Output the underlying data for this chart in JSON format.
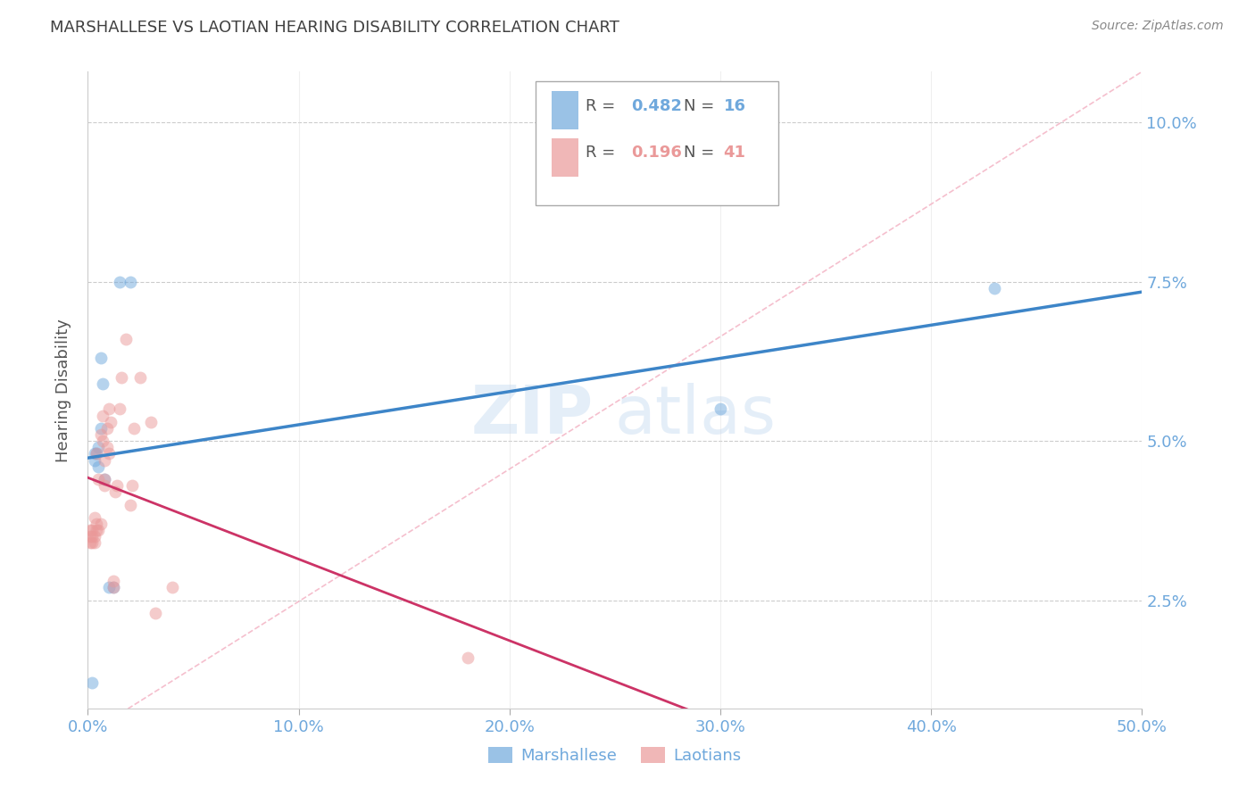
{
  "title": "MARSHALLESE VS LAOTIAN HEARING DISABILITY CORRELATION CHART",
  "source": "Source: ZipAtlas.com",
  "ylabel": "Hearing Disability",
  "xlabel_ticks": [
    "0.0%",
    "10.0%",
    "20.0%",
    "30.0%",
    "40.0%",
    "50.0%"
  ],
  "xlabel_values": [
    0.0,
    0.1,
    0.2,
    0.3,
    0.4,
    0.5
  ],
  "ylabel_ticks": [
    "2.5%",
    "5.0%",
    "7.5%",
    "10.0%"
  ],
  "ylabel_values": [
    0.025,
    0.05,
    0.075,
    0.1
  ],
  "xlim": [
    0.0,
    0.5
  ],
  "ylim": [
    0.008,
    0.108
  ],
  "marshallese_color": "#6fa8dc",
  "laotian_color": "#ea9999",
  "marshallese_R": "0.482",
  "marshallese_N": "16",
  "laotian_R": "0.196",
  "laotian_N": "41",
  "watermark_zip": "ZIP",
  "watermark_atlas": "atlas",
  "marshallese_x": [
    0.002,
    0.003,
    0.003,
    0.004,
    0.005,
    0.005,
    0.006,
    0.006,
    0.007,
    0.008,
    0.01,
    0.012,
    0.015,
    0.02,
    0.3,
    0.43
  ],
  "marshallese_y": [
    0.012,
    0.047,
    0.048,
    0.048,
    0.049,
    0.046,
    0.052,
    0.063,
    0.059,
    0.044,
    0.027,
    0.027,
    0.075,
    0.075,
    0.055,
    0.074
  ],
  "laotian_x": [
    0.001,
    0.001,
    0.001,
    0.002,
    0.002,
    0.002,
    0.003,
    0.003,
    0.003,
    0.004,
    0.004,
    0.004,
    0.005,
    0.005,
    0.006,
    0.006,
    0.007,
    0.007,
    0.008,
    0.008,
    0.008,
    0.009,
    0.009,
    0.01,
    0.01,
    0.011,
    0.012,
    0.012,
    0.013,
    0.014,
    0.015,
    0.016,
    0.018,
    0.02,
    0.021,
    0.022,
    0.025,
    0.03,
    0.032,
    0.04,
    0.18
  ],
  "laotian_y": [
    0.034,
    0.035,
    0.036,
    0.034,
    0.035,
    0.036,
    0.034,
    0.035,
    0.038,
    0.036,
    0.037,
    0.048,
    0.036,
    0.044,
    0.037,
    0.051,
    0.05,
    0.054,
    0.043,
    0.044,
    0.047,
    0.049,
    0.052,
    0.048,
    0.055,
    0.053,
    0.027,
    0.028,
    0.042,
    0.043,
    0.055,
    0.06,
    0.066,
    0.04,
    0.043,
    0.052,
    0.06,
    0.053,
    0.023,
    0.027,
    0.016
  ],
  "background_color": "#ffffff",
  "grid_color": "#cccccc",
  "axis_tick_color": "#6fa8dc",
  "title_color": "#404040",
  "marshallese_line_color": "#3d85c8",
  "laotian_line_color": "#cc3366",
  "diag_line_color": "#f4b8c8"
}
